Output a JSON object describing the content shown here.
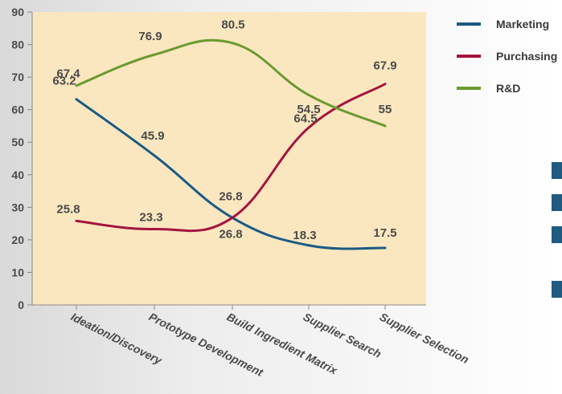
{
  "chart_data": {
    "type": "line",
    "categories": [
      "Ideation/Discovery",
      "Prototype Development",
      "Build Ingredient Matrix",
      "Supplier Search",
      "Supplier Selection"
    ],
    "series": [
      {
        "name": "Marketing",
        "color": "#1a5a84",
        "values": [
          63.2,
          45.9,
          26.8,
          18.3,
          17.5
        ]
      },
      {
        "name": "Purchasing",
        "color": "#a3153f",
        "values": [
          25.8,
          23.3,
          26.8,
          54.5,
          67.9
        ]
      },
      {
        "name": "R&D",
        "color": "#6a9a2e",
        "values": [
          67.4,
          76.9,
          80.5,
          64.5,
          55
        ]
      }
    ],
    "data_labels": [
      {
        "series": "Marketing",
        "index": 0,
        "text": "63.2"
      },
      {
        "series": "Marketing",
        "index": 1,
        "text": "45.9"
      },
      {
        "series": "Marketing",
        "index": 2,
        "text": "26.8"
      },
      {
        "series": "Marketing",
        "index": 3,
        "text": "18.3"
      },
      {
        "series": "Marketing",
        "index": 4,
        "text": "17.5"
      },
      {
        "series": "Purchasing",
        "index": 0,
        "text": "25.8"
      },
      {
        "series": "Purchasing",
        "index": 1,
        "text": "23.3"
      },
      {
        "series": "Purchasing",
        "index": 2,
        "text": "26.8"
      },
      {
        "series": "Purchasing",
        "index": 3,
        "text": "54.5"
      },
      {
        "series": "Purchasing",
        "index": 4,
        "text": "67.9"
      },
      {
        "series": "R&D",
        "index": 0,
        "text": "67.4"
      },
      {
        "series": "R&D",
        "index": 1,
        "text": "76.9"
      },
      {
        "series": "R&D",
        "index": 2,
        "text": "80.5"
      },
      {
        "series": "R&D",
        "index": 3,
        "text": "64.5"
      },
      {
        "series": "R&D",
        "index": 4,
        "text": "55"
      }
    ],
    "yticks": [
      0,
      10,
      20,
      30,
      40,
      50,
      60,
      70,
      80,
      90
    ],
    "ylim": [
      0,
      90
    ],
    "title": "",
    "xlabel": "",
    "ylabel": "",
    "grid": false,
    "legend_position": "right",
    "plot_background": "#fae7bf"
  }
}
